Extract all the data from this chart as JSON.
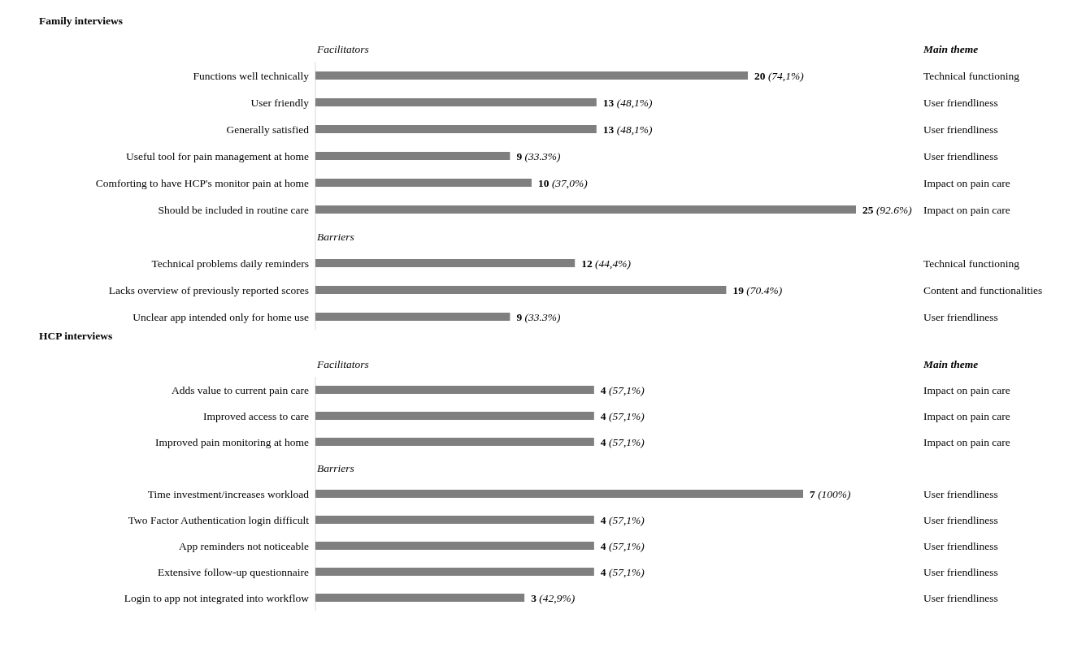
{
  "chart_data": [
    {
      "type": "bar",
      "orientation": "horizontal",
      "title": "Family interviews",
      "tick_labels": "y",
      "color": "#7f7f7f",
      "categories": [
        "Facilitators",
        "Functions well technically",
        "User friendly",
        "Generally satisfied",
        "Useful tool for pain management at home",
        "Comforting to have HCP's monitor pain at home",
        "Should be included in routine care",
        "Barriers",
        "Technical problems daily reminders",
        "Lacks overview of previously reported scores",
        "Unclear app intended only for home use"
      ],
      "y2_categories": [
        "Main theme",
        "Technical functioning",
        "User friendliness",
        "User friendliness",
        "User friendliness",
        "Impact on pain care",
        "Impact on pain care",
        null,
        "Technical functioning",
        "Content and functionalities",
        "User friendliness"
      ],
      "values": [
        null,
        20,
        13,
        13,
        9,
        10,
        25,
        null,
        12,
        19,
        9
      ],
      "value_labels": [
        null,
        "20 (74,1%)",
        "13 (48,1%)",
        "13 (48,1%)",
        "9 (33.3%)",
        "10 (37,0%)",
        "25 (92.6%)",
        null,
        "12 (44,4%)",
        "19 (70.4%)",
        "9 (33.3%)"
      ]
    },
    {
      "type": "bar",
      "orientation": "horizontal",
      "title": "HCP interviews",
      "tick_labels": "y",
      "color": "#7f7f7f",
      "categories": [
        "Facilitators",
        "Adds value to current pain care",
        "Improved access to care",
        "Improved pain monitoring at home",
        "Barriers",
        "Time investment/increases workload",
        "Two Factor Authentication login difficult",
        "App reminders not noticeable",
        "Extensive follow-up questionnaire",
        "Login to app not integrated into workflow"
      ],
      "y2_categories": [
        "Main theme",
        "Impact on pain care",
        "Impact on pain care",
        "Impact on pain care",
        null,
        "User friendliness",
        "User friendliness",
        "User friendliness",
        "User friendliness",
        "User friendliness"
      ],
      "values": [
        null,
        4,
        4,
        4,
        null,
        7,
        4,
        4,
        4,
        3
      ],
      "value_labels": [
        null,
        "4 (57,1%)",
        "4 (57,1%)",
        "4 (57,1%)",
        null,
        "7 (100%)",
        "4 (57,1%)",
        "4 (57,1%)",
        "4 (57,1%)",
        "3 (42,9%)"
      ]
    }
  ]
}
